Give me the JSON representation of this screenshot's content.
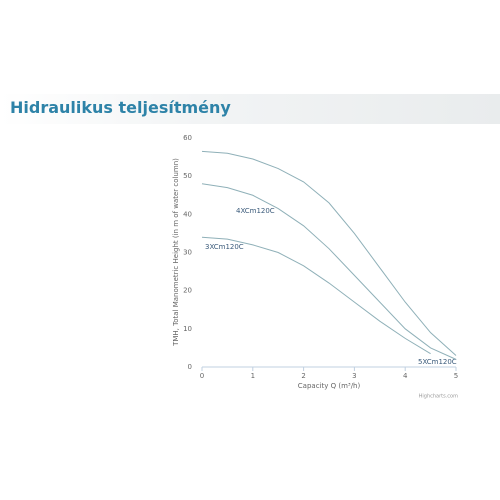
{
  "header": {
    "title": "Hidraulikus teljesítmény"
  },
  "chart_data": {
    "type": "line",
    "x_label": "Capacity Q (m³/h)",
    "y_label": "TMH, Total Manometric Height (in m of water column)",
    "credits": "Highcharts.com",
    "x": [
      0,
      0.5,
      1,
      1.5,
      2,
      2.5,
      3,
      3.5,
      4,
      4.5,
      5
    ],
    "series": [
      {
        "name": "5XCm120C",
        "color": "#8fb0b8",
        "values": [
          56.5,
          56,
          54.5,
          52,
          48.5,
          43,
          35,
          26,
          17,
          9,
          3
        ]
      },
      {
        "name": "4XCm120C",
        "color": "#8fb0b8",
        "values": [
          48,
          47,
          45,
          41.5,
          37,
          31,
          24,
          17,
          10,
          5,
          2
        ]
      },
      {
        "name": "3XCm120C",
        "color": "#8fb0b8",
        "values": [
          34,
          33.5,
          32,
          30,
          26.5,
          22,
          17,
          12,
          7.5,
          3.5,
          null
        ]
      }
    ],
    "xlim": [
      0,
      5
    ],
    "ylim": [
      0,
      60
    ],
    "xticks": [
      0,
      1,
      2,
      3,
      4,
      5
    ],
    "yticks": [
      0,
      10,
      20,
      30,
      40,
      50,
      60
    ],
    "grid": false
  }
}
